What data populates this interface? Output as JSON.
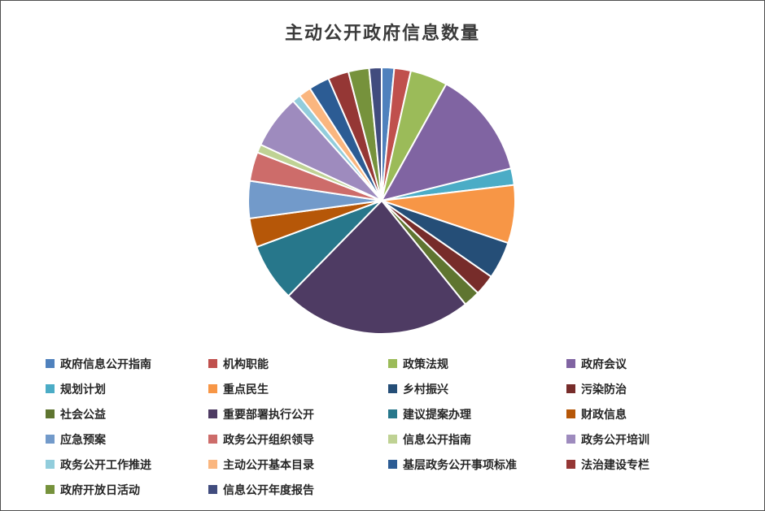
{
  "page": {
    "background": "#FFFFFF",
    "border_color": "#4F4F4F"
  },
  "chart_data": {
    "type": "pie",
    "title": "主动公开政府信息数量",
    "legend_position": "bottom",
    "legend_columns": 4,
    "values_are": "estimated_percent_of_total",
    "start_angle_deg": 0,
    "direction": "clockwise",
    "series": [
      {
        "name": "政府信息公开指南",
        "value": 1.5,
        "color": "#4F81BD"
      },
      {
        "name": "机构职能",
        "value": 2,
        "color": "#C0504D"
      },
      {
        "name": "政策法规",
        "value": 4.5,
        "color": "#9BBB59"
      },
      {
        "name": "政府会议",
        "value": 13,
        "color": "#8064A2"
      },
      {
        "name": "规划计划",
        "value": 2,
        "color": "#4BACC6"
      },
      {
        "name": "重点民生",
        "value": 7,
        "color": "#F79646"
      },
      {
        "name": "乡村振兴",
        "value": 4.5,
        "color": "#254E77"
      },
      {
        "name": "污染防治",
        "value": 2.5,
        "color": "#772C2A"
      },
      {
        "name": "社会公益",
        "value": 2,
        "color": "#5F7530"
      },
      {
        "name": "重要部署执行公开",
        "value": 23,
        "color": "#4E3B63"
      },
      {
        "name": "建议提案办理",
        "value": 7,
        "color": "#27778B"
      },
      {
        "name": "财政信息",
        "value": 3.5,
        "color": "#B65708"
      },
      {
        "name": "应急预案",
        "value": 4.5,
        "color": "#729ACA"
      },
      {
        "name": "政务公开组织领导",
        "value": 3.5,
        "color": "#CD6C6A"
      },
      {
        "name": "信息公开指南",
        "value": 1,
        "color": "#BFD294"
      },
      {
        "name": "政务公开培训",
        "value": 6.5,
        "color": "#9E8BBE"
      },
      {
        "name": "政务公开工作推进",
        "value": 1,
        "color": "#92CDDC"
      },
      {
        "name": "主动公开基本目录",
        "value": 1.5,
        "color": "#FAB67F"
      },
      {
        "name": "基层政务公开事项标准",
        "value": 2.5,
        "color": "#2C5C94"
      },
      {
        "name": "法治建设专栏",
        "value": 2.5,
        "color": "#953735"
      },
      {
        "name": "政府开放日活动",
        "value": 2.5,
        "color": "#76923C"
      },
      {
        "name": "信息公开年度报告",
        "value": 1.5,
        "color": "#414C7E"
      }
    ]
  }
}
